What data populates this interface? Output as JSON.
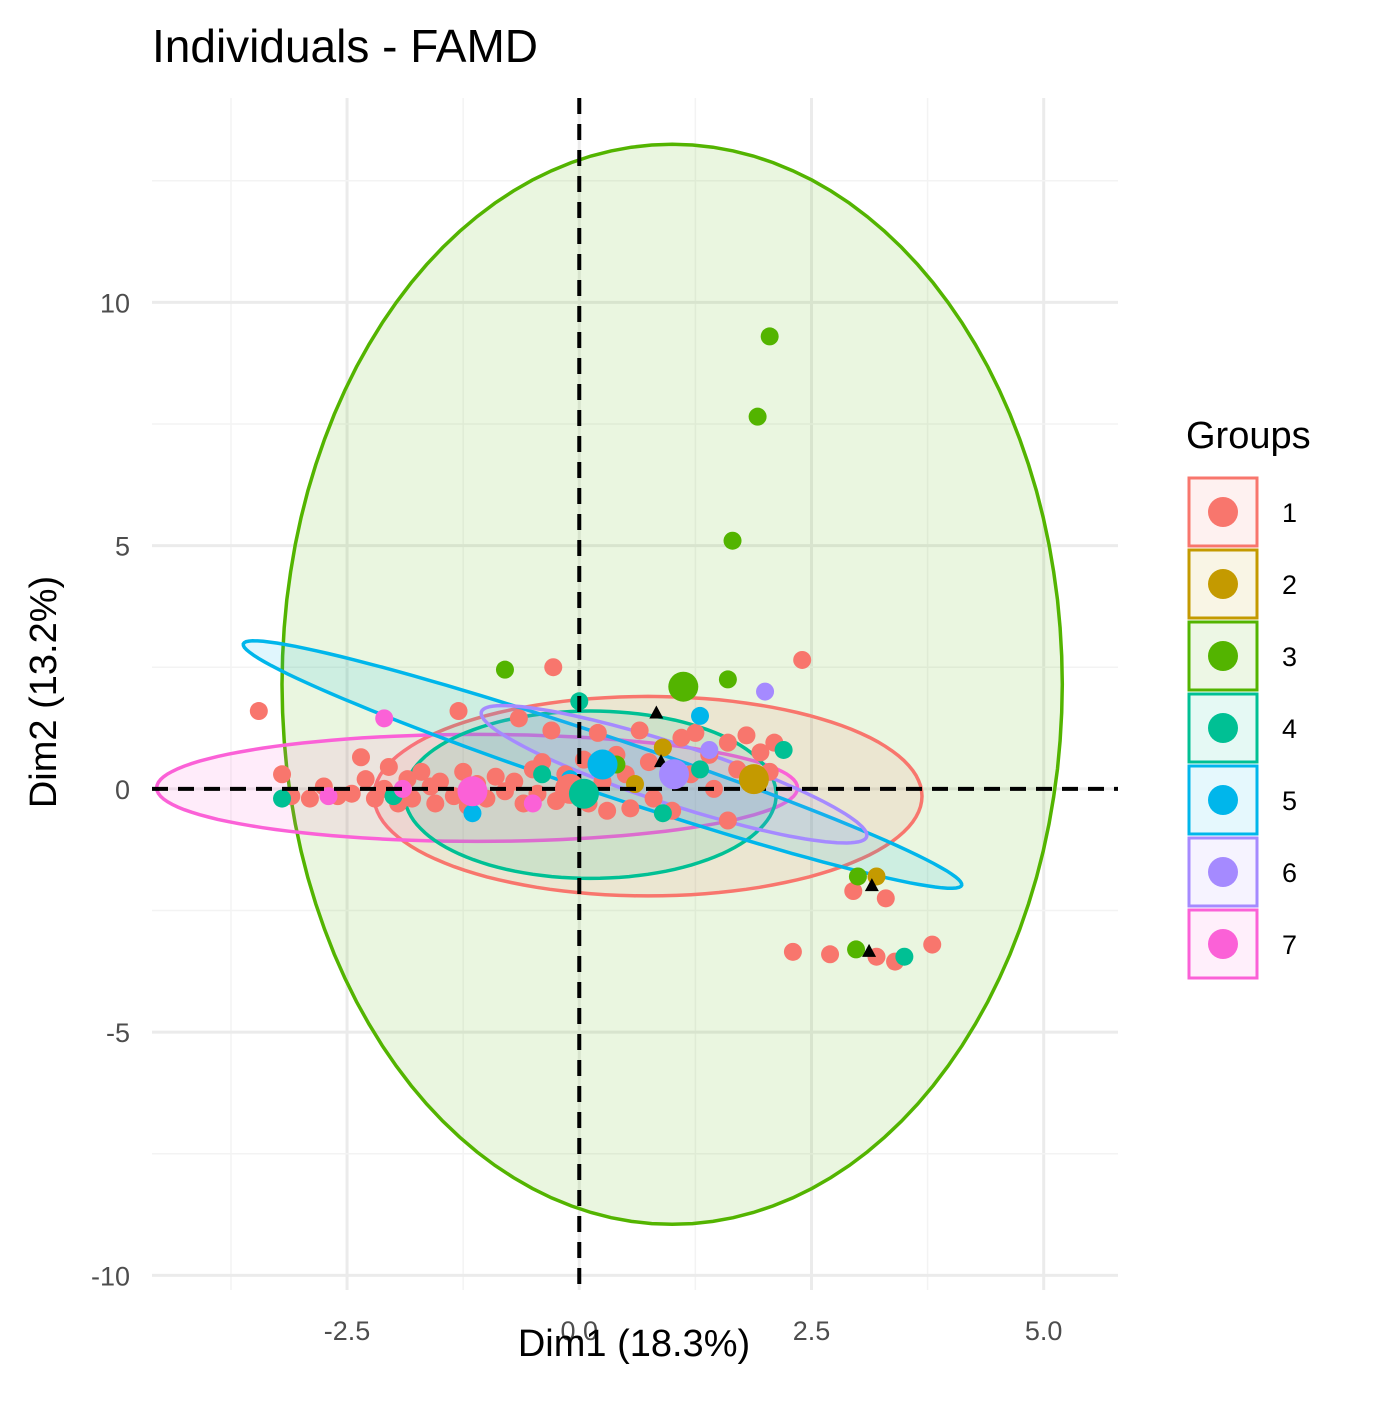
{
  "chart_data": {
    "type": "scatter",
    "title": "Individuals - FAMD",
    "xlabel": "Dim1 (18.3%)",
    "ylabel": "Dim2 (13.2%)",
    "xlim": [
      -4.6,
      5.8
    ],
    "ylim": [
      -10.3,
      14.2
    ],
    "x_ticks": [
      -2.5,
      0.0,
      2.5,
      5.0
    ],
    "x_tick_labels": [
      "-2.5",
      "0.0",
      "2.5",
      "5.0"
    ],
    "y_ticks": [
      -10,
      -5,
      0,
      5,
      10
    ],
    "y_tick_labels": [
      "-10",
      "-5",
      "0",
      "5",
      "10"
    ],
    "grid": true,
    "reference_lines": {
      "x": 0,
      "y": 0,
      "style": "dashed"
    },
    "legend": {
      "title": "Groups",
      "position": "right"
    },
    "colors": {
      "1": "#F8766D",
      "2": "#C49A00",
      "3": "#53B400",
      "4": "#00C094",
      "5": "#00B6EB",
      "6": "#A58AFF",
      "7": "#FB61D7"
    },
    "series": [
      {
        "name": "1",
        "color": "#F8766D",
        "centroid": [
          -0.1,
          0.0
        ],
        "ellipse": {
          "cx": 0.74,
          "cy": -0.15,
          "rx": 2.95,
          "ry": 2.05,
          "angle": 0
        },
        "points": [
          [
            -3.45,
            1.6
          ],
          [
            -3.2,
            0.3
          ],
          [
            -3.1,
            -0.15
          ],
          [
            -2.9,
            -0.2
          ],
          [
            -2.75,
            0.05
          ],
          [
            -2.6,
            -0.15
          ],
          [
            -2.45,
            -0.1
          ],
          [
            -2.35,
            0.65
          ],
          [
            -2.3,
            0.2
          ],
          [
            -2.2,
            -0.2
          ],
          [
            -2.1,
            0.0
          ],
          [
            -2.05,
            0.45
          ],
          [
            -1.95,
            -0.3
          ],
          [
            -1.85,
            0.2
          ],
          [
            -1.8,
            -0.2
          ],
          [
            -1.7,
            0.35
          ],
          [
            -1.6,
            0.05
          ],
          [
            -1.55,
            -0.3
          ],
          [
            -1.5,
            0.15
          ],
          [
            -1.35,
            -0.15
          ],
          [
            -1.3,
            1.6
          ],
          [
            -1.25,
            0.35
          ],
          [
            -1.2,
            -0.35
          ],
          [
            -1.1,
            0.1
          ],
          [
            -1.0,
            -0.2
          ],
          [
            -0.9,
            0.25
          ],
          [
            -0.8,
            -0.05
          ],
          [
            -0.7,
            0.15
          ],
          [
            -0.65,
            1.45
          ],
          [
            -0.6,
            -0.3
          ],
          [
            -0.5,
            0.4
          ],
          [
            -0.45,
            -0.1
          ],
          [
            -0.4,
            0.55
          ],
          [
            -0.3,
            1.2
          ],
          [
            -0.28,
            2.5
          ],
          [
            -0.25,
            -0.25
          ],
          [
            -0.15,
            0.3
          ],
          [
            -0.1,
            -0.05
          ],
          [
            0.05,
            0.6
          ],
          [
            0.1,
            -0.3
          ],
          [
            0.2,
            1.15
          ],
          [
            0.25,
            0.15
          ],
          [
            0.3,
            -0.45
          ],
          [
            0.4,
            0.7
          ],
          [
            0.5,
            0.3
          ],
          [
            0.55,
            -0.4
          ],
          [
            0.65,
            1.2
          ],
          [
            0.75,
            0.55
          ],
          [
            0.8,
            -0.2
          ],
          [
            0.9,
            0.85
          ],
          [
            1.0,
            -0.45
          ],
          [
            1.1,
            1.05
          ],
          [
            1.2,
            0.3
          ],
          [
            1.25,
            1.15
          ],
          [
            1.4,
            0.7
          ],
          [
            1.45,
            0.0
          ],
          [
            1.6,
            0.95
          ],
          [
            1.7,
            0.4
          ],
          [
            1.6,
            -0.65
          ],
          [
            1.8,
            1.1
          ],
          [
            1.95,
            0.75
          ],
          [
            2.05,
            0.35
          ],
          [
            2.1,
            0.95
          ],
          [
            2.4,
            2.65
          ],
          [
            2.95,
            -2.1
          ],
          [
            3.3,
            -2.25
          ],
          [
            2.3,
            -3.35
          ],
          [
            2.7,
            -3.4
          ],
          [
            3.2,
            -3.45
          ],
          [
            3.4,
            -3.55
          ],
          [
            3.8,
            -3.2
          ]
        ]
      },
      {
        "name": "2",
        "color": "#C49A00",
        "centroid": [
          1.88,
          0.2
        ],
        "points": [
          [
            3.2,
            -1.8
          ],
          [
            0.9,
            0.85
          ],
          [
            0.6,
            0.1
          ]
        ]
      },
      {
        "name": "3",
        "color": "#53B400",
        "centroid": [
          1.12,
          2.1
        ],
        "ellipse": {
          "cx": 1.0,
          "cy": 2.15,
          "rx": 4.2,
          "ry": 11.1,
          "angle": 0
        },
        "points": [
          [
            2.05,
            9.3
          ],
          [
            1.92,
            7.65
          ],
          [
            1.65,
            5.1
          ],
          [
            1.6,
            2.25
          ],
          [
            -0.8,
            2.45
          ],
          [
            3.0,
            -1.8
          ],
          [
            2.98,
            -3.3
          ],
          [
            0.4,
            0.5
          ]
        ]
      },
      {
        "name": "4",
        "color": "#00C094",
        "centroid": [
          0.05,
          -0.1
        ],
        "ellipse": {
          "cx": 0.12,
          "cy": -0.12,
          "rx": 2.0,
          "ry": 1.72,
          "angle": 0
        },
        "points": [
          [
            0.0,
            1.8
          ],
          [
            -3.2,
            -0.2
          ],
          [
            -2.0,
            -0.15
          ],
          [
            0.9,
            -0.5
          ],
          [
            2.2,
            0.8
          ],
          [
            3.5,
            -3.45
          ],
          [
            1.3,
            0.4
          ],
          [
            -0.4,
            0.3
          ]
        ]
      },
      {
        "name": "5",
        "color": "#00B6EB",
        "centroid": [
          0.25,
          0.5
        ],
        "ellipse": {
          "cx": 0.25,
          "cy": 0.5,
          "rx": 4.6,
          "ry": 0.52,
          "angle": -33
        },
        "points": [
          [
            -1.15,
            -0.5
          ],
          [
            1.3,
            1.5
          ],
          [
            -0.1,
            0.2
          ]
        ]
      },
      {
        "name": "6",
        "color": "#A58AFF",
        "centroid": [
          1.02,
          0.3
        ],
        "ellipse": {
          "cx": 1.02,
          "cy": 0.3,
          "rx": 2.45,
          "ry": 0.55,
          "angle": -33
        },
        "points": [
          [
            2.0,
            2.0
          ],
          [
            1.4,
            0.8
          ],
          [
            0.3,
            0.5
          ]
        ]
      },
      {
        "name": "7",
        "color": "#FB61D7",
        "centroid": [
          -1.15,
          -0.05
        ],
        "ellipse": {
          "cx": -1.1,
          "cy": 0.02,
          "rx": 3.45,
          "ry": 1.1,
          "angle": 0
        },
        "points": [
          [
            -2.1,
            1.45
          ],
          [
            -1.9,
            0.0
          ],
          [
            -2.7,
            -0.15
          ],
          [
            -0.5,
            -0.3
          ]
        ]
      }
    ],
    "triangles": [
      [
        0.83,
        1.55
      ],
      [
        0.88,
        0.55
      ],
      [
        3.15,
        -2.0
      ],
      [
        3.12,
        -3.35
      ]
    ]
  }
}
